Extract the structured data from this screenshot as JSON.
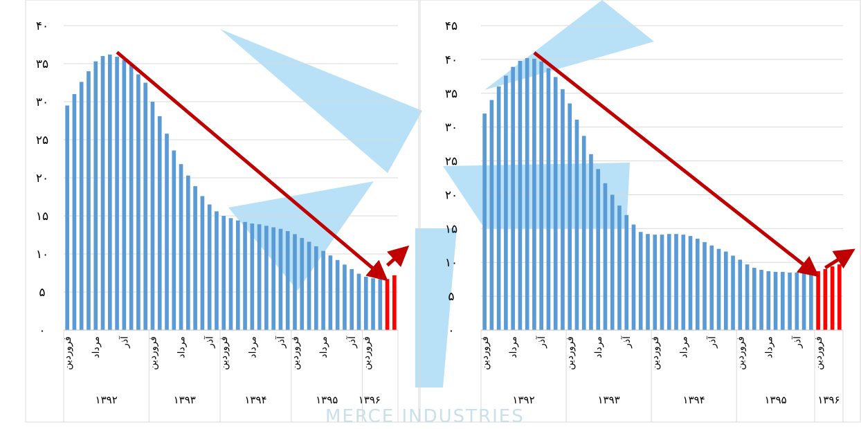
{
  "colors": {
    "actual": "#5b9bd5",
    "recent": "#ff0000",
    "arrow": "#c00000",
    "grid": "#d9d9d9"
  },
  "watermark": {
    "text": "CHAMBER OF COMMERCE INDUSTRIES MINES AND AGRICULTURE"
  },
  "chart_data": [
    {
      "type": "bar",
      "title": "",
      "ylim": [
        0,
        40
      ],
      "yticks": [
        "۰",
        "۵",
        "۱۰",
        "۱۵",
        "۲۰",
        "۲۵",
        "۳۰",
        "۳۵",
        "۴۰"
      ],
      "grid": true,
      "month_labels": [
        "فروردین",
        "مرداد",
        "آذر"
      ],
      "years": [
        {
          "label": "۱۳۹۲",
          "count": 12
        },
        {
          "label": "۱۳۹۳",
          "count": 10
        },
        {
          "label": "۱۳۹۴",
          "count": 10
        },
        {
          "label": "۱۳۹۵",
          "count": 10
        },
        {
          "label": "۱۳۹۶",
          "count": 2
        }
      ],
      "values": [
        29.5,
        31,
        32.6,
        34,
        35.3,
        36,
        36.2,
        35.9,
        35.5,
        34.8,
        33.6,
        32.5,
        30,
        28.1,
        25.8,
        23.6,
        21.8,
        20.3,
        18.9,
        17.6,
        16.5,
        15.6,
        15,
        14.7,
        14.4,
        14.2,
        14,
        13.9,
        13.7,
        13.5,
        13.3,
        13,
        12.6,
        12.1,
        11.6,
        11,
        10.4,
        9.8,
        9.2,
        8.6,
        8,
        7.4,
        7,
        6.8,
        6.7,
        6.7,
        7.2
      ],
      "highlight_from": 45,
      "trend_arrow": {
        "from": [
          7,
          36.5
        ],
        "to": [
          44,
          7.3
        ]
      },
      "up_arrow": {
        "from": [
          45,
          8.5
        ],
        "to": [
          47,
          10.2
        ]
      }
    },
    {
      "type": "bar",
      "title": "",
      "ylim": [
        0,
        45
      ],
      "yticks": [
        "۰",
        "۵",
        "۱۰",
        "۱۵",
        "۲۰",
        "۲۵",
        "۳۰",
        "۳۵",
        "۴۰",
        "۴۵"
      ],
      "grid": true,
      "month_labels": [
        "فروردین",
        "مرداد",
        "آذر"
      ],
      "years": [
        {
          "label": "۱۳۹۲",
          "count": 12
        },
        {
          "label": "۱۳۹۳",
          "count": 12
        },
        {
          "label": "۱۳۹۴",
          "count": 12
        },
        {
          "label": "۱۳۹۵",
          "count": 11
        },
        {
          "label": "۱۳۹۶",
          "count": 4
        }
      ],
      "values": [
        32,
        34,
        36,
        37.6,
        38.9,
        39.8,
        40.2,
        40.1,
        39.7,
        38.7,
        37.4,
        35.6,
        33.5,
        31.1,
        28.7,
        26,
        23.8,
        21.7,
        20,
        18.4,
        17,
        15.6,
        14.5,
        14.2,
        14.1,
        14.1,
        14.2,
        14.2,
        14.1,
        13.9,
        13.5,
        13,
        12.5,
        12,
        11.6,
        11,
        10.4,
        9.7,
        9.2,
        8.9,
        8.7,
        8.6,
        8.6,
        8.5,
        8.5,
        8.5,
        8.5,
        8.7,
        9,
        9.4,
        9.7
      ],
      "highlight_from": 47,
      "trend_arrow": {
        "from": [
          7,
          41
        ],
        "to": [
          46,
          8.8
        ]
      },
      "up_arrow": {
        "from": [
          48,
          9.2
        ],
        "to": [
          51,
          11.2
        ]
      }
    }
  ]
}
